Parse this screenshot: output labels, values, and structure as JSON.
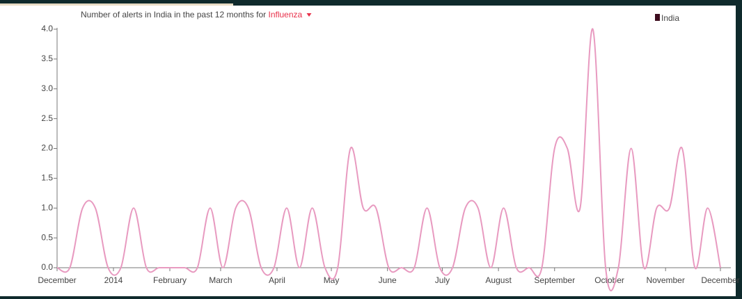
{
  "chart_data": {
    "type": "line",
    "title": "Number of alerts in India in the past 12 months for",
    "disease": "Influenza",
    "disease_color": "#e8304a",
    "legend_color": "#3d0c1e",
    "x": [
      0,
      1,
      2,
      3,
      4,
      5,
      6,
      7,
      8,
      9,
      10,
      11,
      12,
      13,
      14,
      15,
      16,
      17,
      18,
      19,
      20,
      21,
      22,
      23,
      24,
      25,
      26,
      27,
      28,
      29,
      30,
      31,
      32,
      33,
      34,
      35,
      36,
      37,
      38,
      39,
      40,
      41,
      42,
      43,
      44,
      45,
      46,
      47,
      48,
      49,
      50,
      51,
      52
    ],
    "series": [
      {
        "name": "India",
        "color": "#e89ac0",
        "values": [
          0,
          0,
          1,
          1,
          0,
          0,
          1,
          0,
          0,
          0,
          0,
          0,
          1,
          0,
          1,
          1,
          0,
          0,
          1,
          0,
          1,
          0,
          0,
          2,
          1,
          1,
          0,
          0,
          0,
          1,
          0,
          0,
          1,
          1,
          0,
          1,
          0,
          0,
          0,
          2,
          2,
          1,
          4,
          0,
          0,
          2,
          0,
          1,
          1,
          2,
          0,
          1,
          0
        ]
      }
    ],
    "xlim": [
      0,
      52
    ],
    "xticks": [
      {
        "value": 0,
        "label": "December"
      },
      {
        "value": 4.42,
        "label": "2014"
      },
      {
        "value": 8.84,
        "label": "February"
      },
      {
        "value": 12.82,
        "label": "March"
      },
      {
        "value": 17.24,
        "label": "April"
      },
      {
        "value": 21.5,
        "label": "May"
      },
      {
        "value": 25.9,
        "label": "June"
      },
      {
        "value": 30.2,
        "label": "July"
      },
      {
        "value": 34.6,
        "label": "August"
      },
      {
        "value": 39,
        "label": "September"
      },
      {
        "value": 43.3,
        "label": "October"
      },
      {
        "value": 47.7,
        "label": "November"
      },
      {
        "value": 52,
        "label": "December"
      }
    ],
    "ylim": [
      0,
      4
    ],
    "yticks": [
      {
        "value": 0,
        "label": "0.0"
      },
      {
        "value": 0.5,
        "label": "0.5"
      },
      {
        "value": 1,
        "label": "1.0"
      },
      {
        "value": 1.5,
        "label": "1.5"
      },
      {
        "value": 2,
        "label": "2.0"
      },
      {
        "value": 2.5,
        "label": "2.5"
      },
      {
        "value": 3,
        "label": "3.0"
      },
      {
        "value": 3.5,
        "label": "3.5"
      },
      {
        "value": 4,
        "label": "4.0"
      }
    ]
  }
}
